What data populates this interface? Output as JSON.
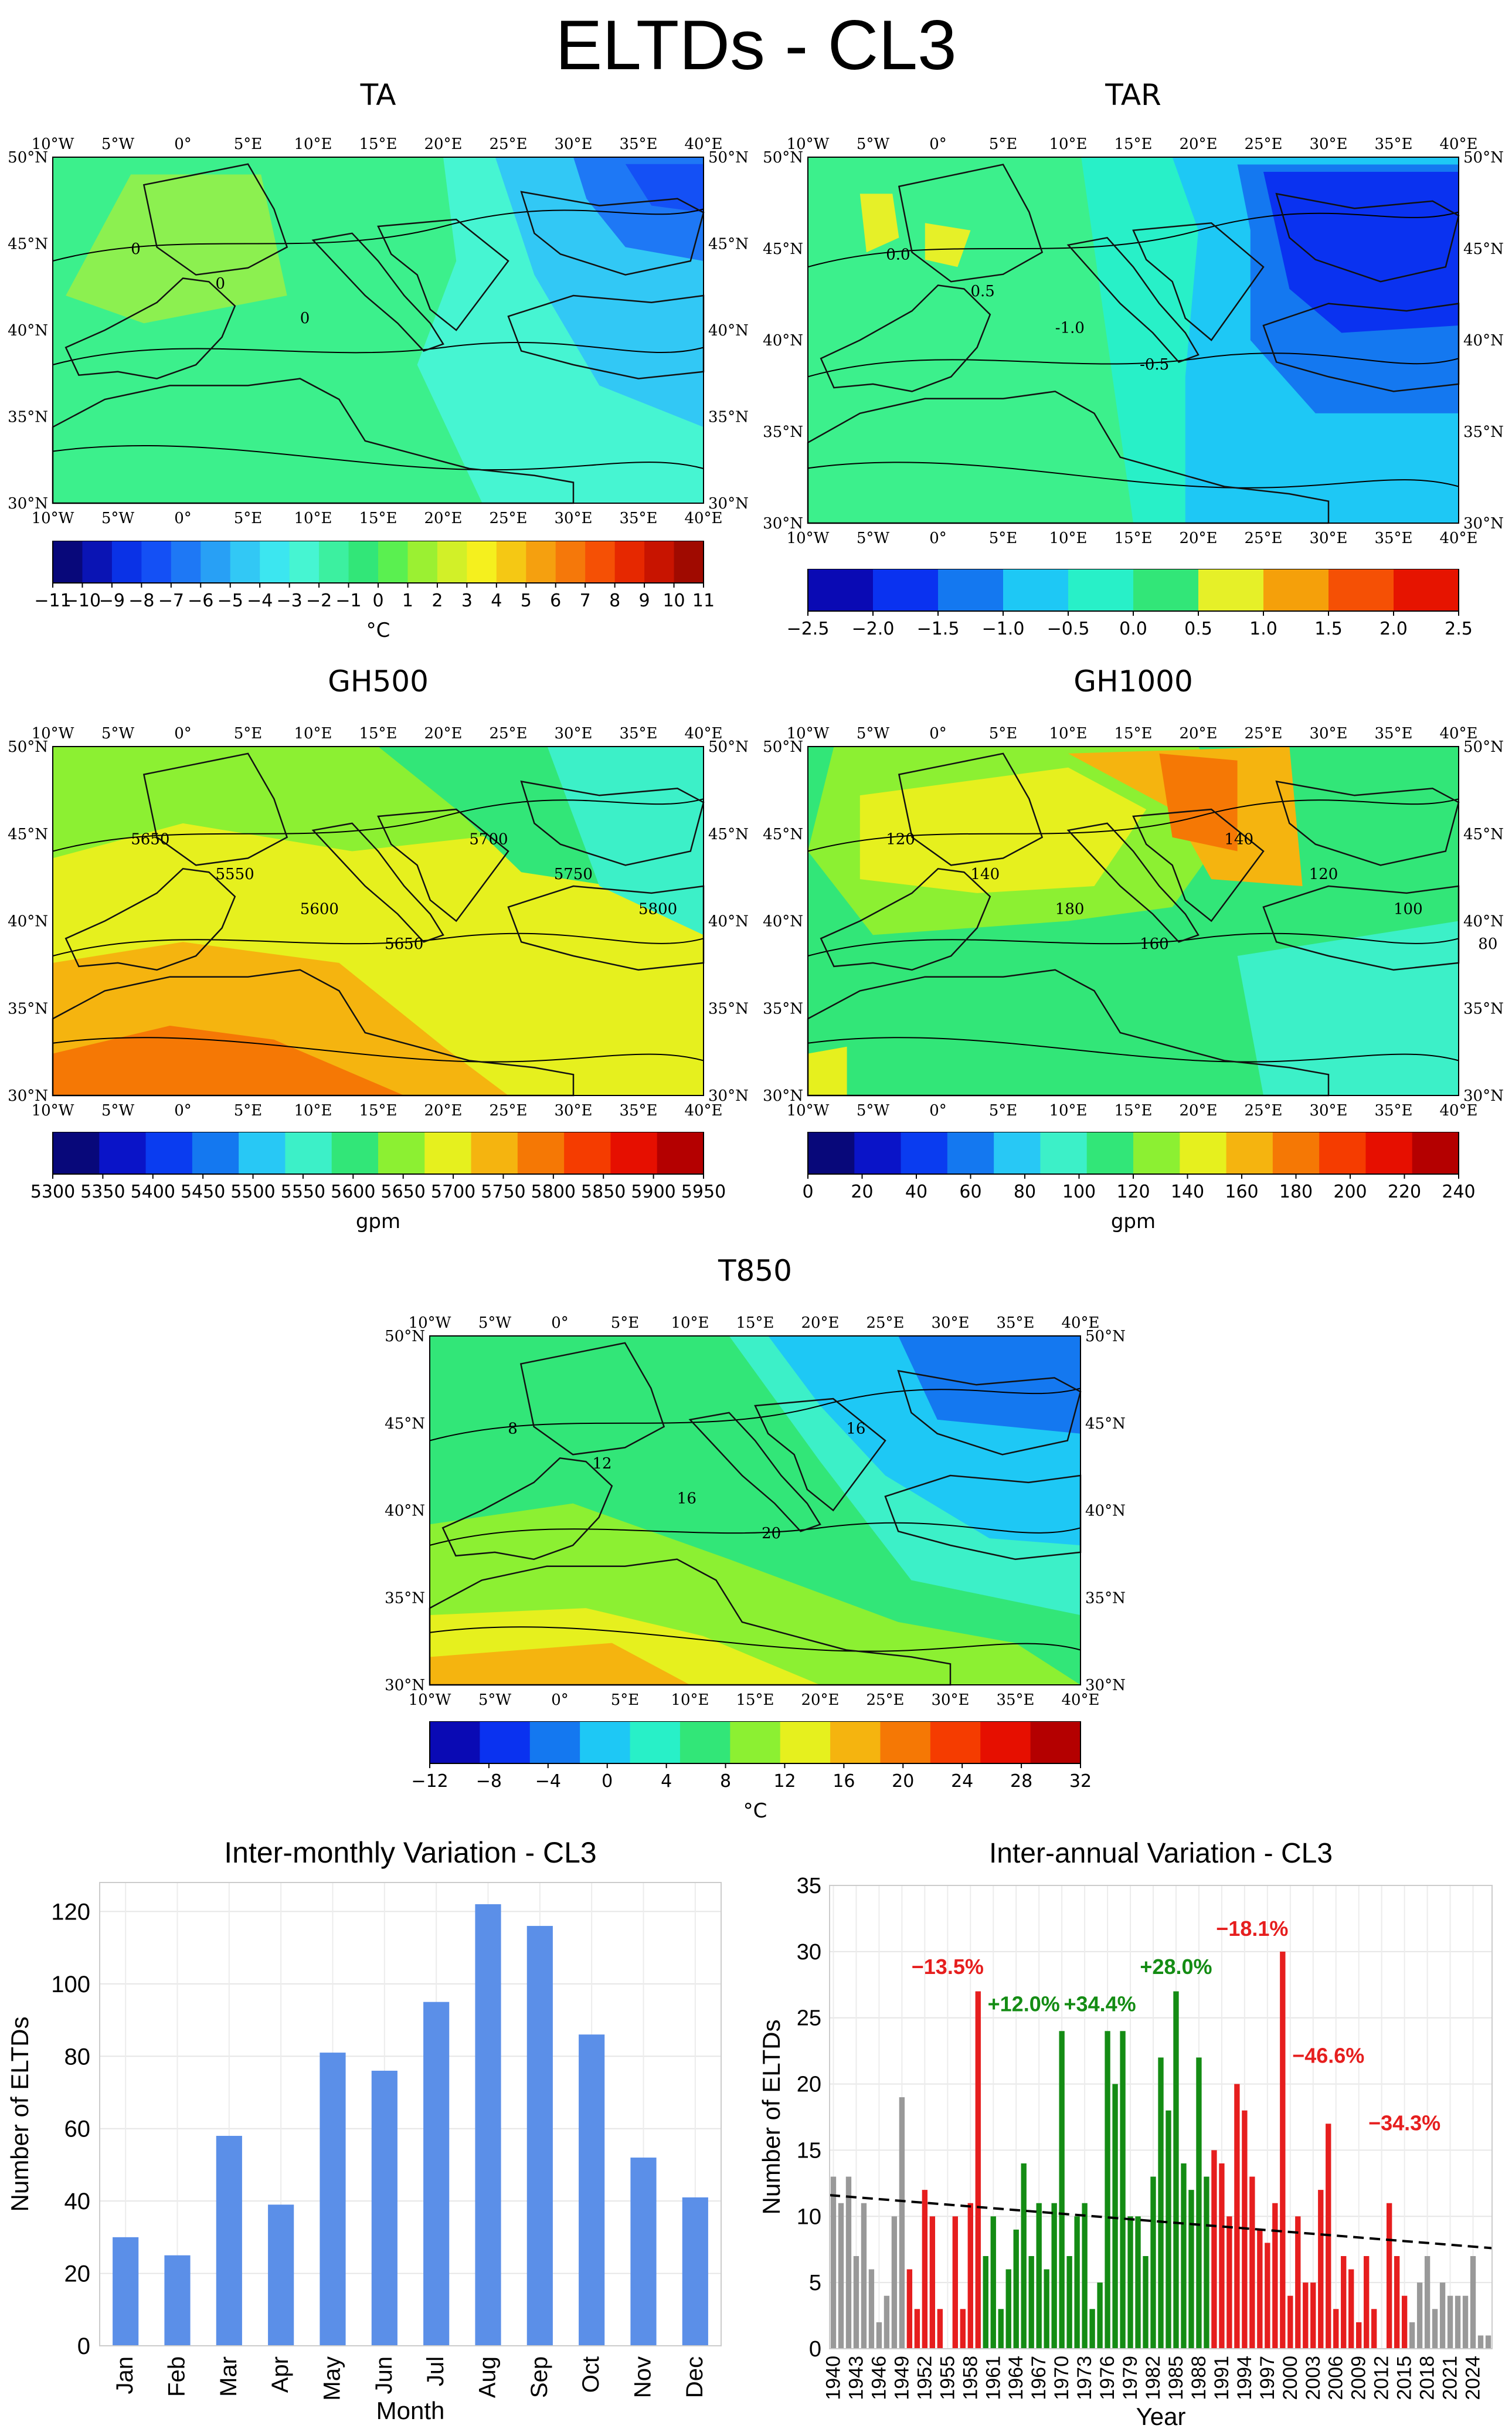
{
  "figure": {
    "title": "ELTDs - CL3"
  },
  "maps": [
    {
      "id": "ta",
      "title": "TA",
      "unit": "°C",
      "lon_labels": [
        "10°W",
        "5°W",
        "0°",
        "5°E",
        "10°E",
        "15°E",
        "20°E",
        "25°E",
        "30°E",
        "35°E",
        "40°E"
      ],
      "lat_labels": [
        "50°N",
        "45°N",
        "40°N",
        "35°N",
        "30°N"
      ],
      "colorbar_ticks": [
        "−11",
        "−10",
        "−9",
        "−8",
        "−7",
        "−6",
        "−5",
        "−4",
        "−3",
        "−2",
        "−1",
        "0",
        "1",
        "2",
        "3",
        "4",
        "5",
        "6",
        "7",
        "8",
        "9",
        "10",
        "11"
      ],
      "colorbar_colors": [
        "#08087a",
        "#0a14b4",
        "#0a32e6",
        "#1450f5",
        "#1e78f5",
        "#28a0f5",
        "#32c8f5",
        "#3ce6f0",
        "#46f5d2",
        "#3cf0a0",
        "#32e678",
        "#5af050",
        "#9bf032",
        "#d2f028",
        "#f5f01e",
        "#f5c814",
        "#f5a00f",
        "#f5780a",
        "#f55005",
        "#e62800",
        "#c81400",
        "#a00a00"
      ],
      "contour_labels": [
        "0",
        "0",
        "0"
      ]
    },
    {
      "id": "tar",
      "title": "TAR",
      "unit": "",
      "lon_labels": [
        "10°W",
        "5°W",
        "0°",
        "5°E",
        "10°E",
        "15°E",
        "20°E",
        "25°E",
        "30°E",
        "35°E",
        "40°E"
      ],
      "lat_labels": [
        "50°N",
        "45°N",
        "40°N",
        "35°N",
        "30°N"
      ],
      "colorbar_ticks": [
        "−2.5",
        "−2.0",
        "−1.5",
        "−1.0",
        "−0.5",
        "0.0",
        "0.5",
        "1.0",
        "1.5",
        "2.0",
        "2.5"
      ],
      "colorbar_colors": [
        "#0a0ab4",
        "#0a32f0",
        "#1478f0",
        "#1ec8f5",
        "#28f0c8",
        "#32e678",
        "#e6f028",
        "#f5a00a",
        "#f55005",
        "#e61400"
      ],
      "contour_labels": [
        "0.0",
        "0.5",
        "-1.0",
        "-0.5"
      ]
    },
    {
      "id": "gh500",
      "title": "GH500",
      "unit": "gpm",
      "lon_labels": [
        "10°W",
        "5°W",
        "0°",
        "5°E",
        "10°E",
        "15°E",
        "20°E",
        "25°E",
        "30°E",
        "35°E",
        "40°E"
      ],
      "lat_labels": [
        "50°N",
        "45°N",
        "40°N",
        "35°N",
        "30°N"
      ],
      "colorbar_ticks": [
        "5300",
        "5350",
        "5400",
        "5450",
        "5500",
        "5550",
        "5600",
        "5650",
        "5700",
        "5750",
        "5800",
        "5850",
        "5900",
        "5950"
      ],
      "colorbar_colors": [
        "#08087a",
        "#0a14c8",
        "#0a3cf0",
        "#1478f0",
        "#28c8f5",
        "#3cf0c8",
        "#32e678",
        "#8cf032",
        "#e6f01e",
        "#f5b40f",
        "#f57805",
        "#f53c00",
        "#e60f00",
        "#b40000"
      ],
      "contour_labels": [
        "5650",
        "5550",
        "5600",
        "5650",
        "5700",
        "5750",
        "5800"
      ]
    },
    {
      "id": "gh1000",
      "title": "GH1000",
      "unit": "gpm",
      "lon_labels": [
        "10°W",
        "5°W",
        "0°",
        "5°E",
        "10°E",
        "15°E",
        "20°E",
        "25°E",
        "30°E",
        "35°E",
        "40°E"
      ],
      "lat_labels": [
        "50°N",
        "45°N",
        "40°N",
        "35°N",
        "30°N"
      ],
      "colorbar_ticks": [
        "0",
        "20",
        "40",
        "60",
        "80",
        "100",
        "120",
        "140",
        "160",
        "180",
        "200",
        "220",
        "240"
      ],
      "colorbar_colors": [
        "#08087a",
        "#0a14c8",
        "#0a3cf0",
        "#1478f0",
        "#28c8f5",
        "#3cf0c8",
        "#32e678",
        "#8cf032",
        "#e6f01e",
        "#f5b40f",
        "#f57805",
        "#f53c00",
        "#e60f00",
        "#b40000"
      ],
      "contour_labels": [
        "120",
        "140",
        "180",
        "160",
        "140",
        "120",
        "100",
        "80"
      ]
    },
    {
      "id": "t850",
      "title": "T850",
      "unit": "°C",
      "lon_labels": [
        "10°W",
        "5°W",
        "0°",
        "5°E",
        "10°E",
        "15°E",
        "20°E",
        "25°E",
        "30°E",
        "35°E",
        "40°E"
      ],
      "lat_labels": [
        "50°N",
        "45°N",
        "40°N",
        "35°N",
        "30°N"
      ],
      "colorbar_ticks": [
        "−12",
        "−8",
        "−4",
        "0",
        "4",
        "8",
        "12",
        "16",
        "20",
        "24",
        "28",
        "32"
      ],
      "colorbar_colors": [
        "#0a0ab4",
        "#0a32f0",
        "#1478f0",
        "#1ec8f5",
        "#28f0c8",
        "#32e678",
        "#8cf032",
        "#e6f01e",
        "#f5b40f",
        "#f57805",
        "#f53c00",
        "#e60f00",
        "#b40000"
      ],
      "contour_labels": [
        "8",
        "12",
        "16",
        "20",
        "16"
      ]
    }
  ],
  "chart_data": [
    {
      "type": "bar",
      "title": "Inter-monthly Variation - CL3",
      "xlabel": "Month",
      "ylabel": "Number of ELTDs",
      "ylim": [
        0,
        128
      ],
      "yticks": [
        "0",
        "20",
        "40",
        "60",
        "80",
        "100",
        "120"
      ],
      "categories": [
        "Jan",
        "Feb",
        "Mar",
        "Apr",
        "May",
        "Jun",
        "Jul",
        "Aug",
        "Sep",
        "Oct",
        "Nov",
        "Dec"
      ],
      "values": [
        30,
        25,
        58,
        39,
        81,
        76,
        95,
        122,
        116,
        86,
        52,
        41
      ],
      "color": "#5b8fe8"
    },
    {
      "type": "bar",
      "title": "Inter-annual Variation - CL3",
      "xlabel": "Year",
      "ylabel": "Number of ELTDs",
      "ylim": [
        0,
        35
      ],
      "yticks": [
        "0",
        "5",
        "10",
        "15",
        "20",
        "25",
        "30",
        "35"
      ],
      "x_tick_labels": [
        "1940",
        "1943",
        "1946",
        "1949",
        "1952",
        "1955",
        "1958",
        "1961",
        "1964",
        "1967",
        "1970",
        "1973",
        "1976",
        "1979",
        "1982",
        "1985",
        "1988",
        "1991",
        "1994",
        "1997",
        "2000",
        "2003",
        "2006",
        "2009",
        "2012",
        "2015",
        "2018",
        "2021",
        "2024"
      ],
      "start_year": 1940,
      "values": [
        13,
        11,
        13,
        7,
        11,
        6,
        2,
        4,
        10,
        19,
        6,
        3,
        12,
        10,
        3,
        0,
        10,
        3,
        11,
        27,
        7,
        10,
        3,
        6,
        9,
        14,
        7,
        11,
        6,
        11,
        24,
        7,
        10,
        11,
        3,
        5,
        24,
        20,
        24,
        10,
        10,
        7,
        13,
        22,
        18,
        27,
        14,
        12,
        22,
        13,
        15,
        14,
        10,
        20,
        18,
        13,
        9,
        8,
        11,
        30,
        4,
        10,
        5,
        5,
        12,
        17,
        3,
        7,
        6,
        2,
        7,
        3,
        0,
        11,
        7,
        4,
        2,
        5,
        7,
        3,
        5,
        4,
        4,
        4,
        7,
        1,
        1
      ],
      "segments": [
        {
          "from": 1940,
          "to": 1949,
          "color": "#999999"
        },
        {
          "from": 1950,
          "to": 1959,
          "color": "#e61e1e"
        },
        {
          "from": 1960,
          "to": 1989,
          "color": "#148c14"
        },
        {
          "from": 1990,
          "to": 2015,
          "color": "#e61e1e"
        },
        {
          "from": 2016,
          "to": 2026,
          "color": "#999999"
        }
      ],
      "trend": {
        "start": 11.6,
        "end": 7.6,
        "style": "dashed"
      },
      "annotations": [
        {
          "text": "−13.5%",
          "year": 1955,
          "y": 28.3,
          "color": "#e61e1e"
        },
        {
          "text": "+12.0%",
          "year": 1965,
          "y": 25.5,
          "color": "#148c14"
        },
        {
          "text": "+34.4%",
          "year": 1975,
          "y": 25.5,
          "color": "#148c14"
        },
        {
          "text": "+28.0%",
          "year": 1985,
          "y": 28.3,
          "color": "#148c14"
        },
        {
          "text": "−18.1%",
          "year": 1995,
          "y": 31.2,
          "color": "#e61e1e"
        },
        {
          "text": "−46.6%",
          "year": 2005,
          "y": 21.6,
          "color": "#e61e1e"
        },
        {
          "text": "−34.3%",
          "year": 2015,
          "y": 16.5,
          "color": "#e61e1e"
        }
      ]
    }
  ]
}
